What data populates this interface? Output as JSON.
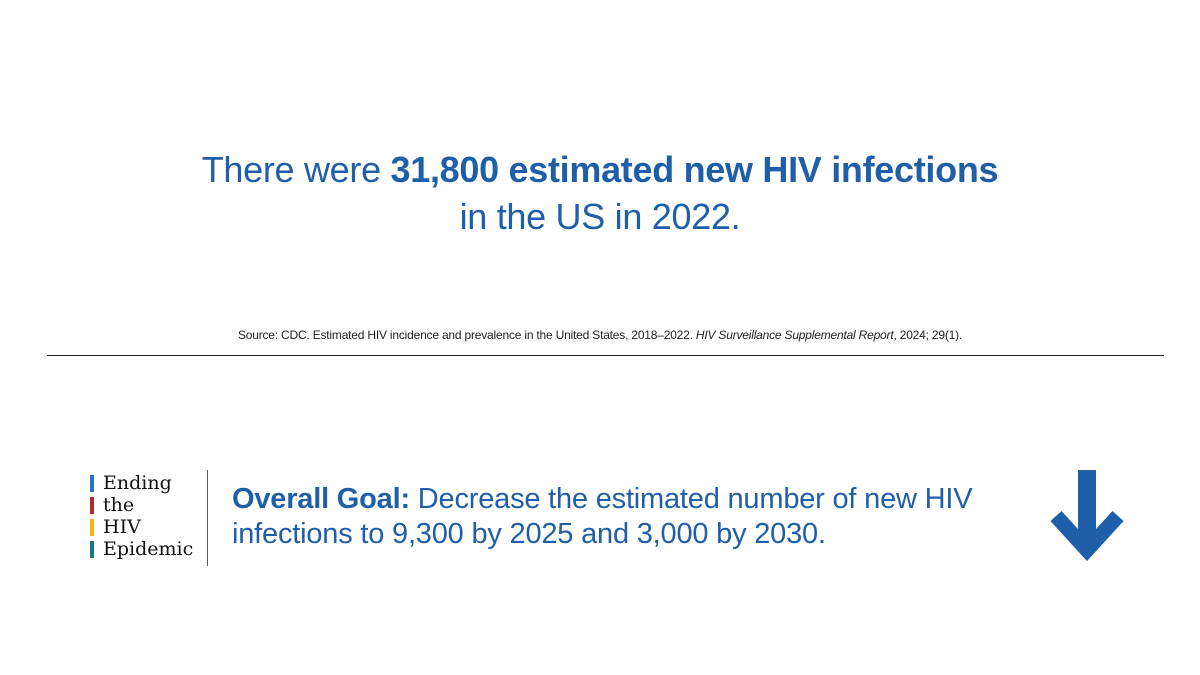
{
  "headline": {
    "prefix": "There were ",
    "highlight": "31,800 estimated new HIV infections",
    "suffix": "in the US in 2022."
  },
  "source": {
    "prefix": "Source: CDC. Estimated HIV incidence and prevalence in the United States, 2018–2022. ",
    "journal": "HIV Surveillance Supplemental Report",
    "suffix": ", 2024; 29(1)."
  },
  "logo": {
    "lines": [
      "Ending",
      "the",
      "HIV",
      "Epidemic"
    ],
    "colors": [
      "#2a78b8",
      "#b42a34",
      "#f2b41c",
      "#147a8a"
    ]
  },
  "goal": {
    "label": "Overall Goal:",
    "text": " Decrease the estimated number of new HIV infections to 9,300 by 2025 and 3,000 by 2030."
  },
  "arrow": {
    "icon": "arrow-down-icon",
    "color": "#1f5ea8"
  }
}
